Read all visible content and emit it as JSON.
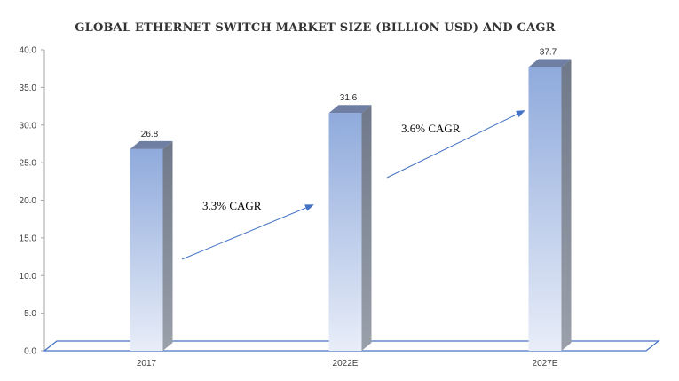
{
  "chart_data": {
    "type": "bar",
    "title": "GLOBAL ETHERNET SWITCH MARKET SIZE (BILLION USD) AND CAGR",
    "categories": [
      "2017",
      "2022E",
      "2027E"
    ],
    "values": [
      26.8,
      31.6,
      37.7
    ],
    "value_labels": [
      "26.8",
      "31.6",
      "37.7"
    ],
    "ylim": [
      0,
      40
    ],
    "yticks": [
      "0.0",
      "5.0",
      "10.0",
      "15.0",
      "20.0",
      "25.0",
      "30.0",
      "35.0",
      "40.0"
    ],
    "xlabel": "",
    "ylabel": "",
    "grid": false,
    "legend": "none",
    "style": "3d-column",
    "annotations": [
      {
        "text": "3.3% CAGR",
        "from": "2017",
        "to": "2022E"
      },
      {
        "text": "3.6% CAGR",
        "from": "2022E",
        "to": "2027E"
      }
    ]
  },
  "colors": {
    "bar_top": "#8faadc",
    "bar_bottom": "#e8edf8",
    "bar_side": "#7f8794",
    "bar_cap": "#6e7fa3",
    "floor": "#4472c4",
    "arrow": "#4472c4",
    "axis": "#a6a6a6"
  }
}
